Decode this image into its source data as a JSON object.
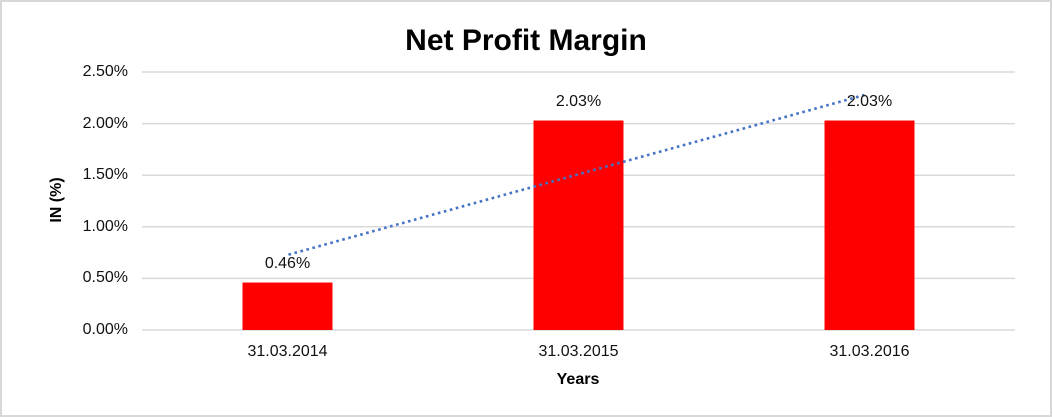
{
  "chart_data": {
    "type": "bar",
    "title": "Net Profit Margin",
    "xlabel": "Years",
    "ylabel": "IN (%)",
    "categories": [
      "31.03.2014",
      "31.03.2015",
      "31.03.2016"
    ],
    "values": [
      0.46,
      2.03,
      2.03
    ],
    "data_labels": [
      "0.46%",
      "2.03%",
      "2.03%"
    ],
    "yticks": [
      {
        "value": 0.0,
        "label": "0.00%"
      },
      {
        "value": 0.5,
        "label": "0.50%"
      },
      {
        "value": 1.0,
        "label": "1.00%"
      },
      {
        "value": 1.5,
        "label": "1.50%"
      },
      {
        "value": 2.0,
        "label": "2.00%"
      },
      {
        "value": 2.5,
        "label": "2.50%"
      }
    ],
    "ylim": [
      0,
      2.5
    ],
    "grid": true,
    "legend": "none",
    "trendline": {
      "style": "dotted",
      "points": [
        {
          "category_index": 0,
          "value": 0.73
        },
        {
          "category_index": 2,
          "value": 2.28
        }
      ]
    }
  },
  "colors": {
    "bar": "#FF0000",
    "trendline": "#4472C4",
    "gridline": "#D9D9D9",
    "border": "#D8D8D8",
    "text": "#111111",
    "title_text": "#000000",
    "background": "#FFFFFF"
  }
}
